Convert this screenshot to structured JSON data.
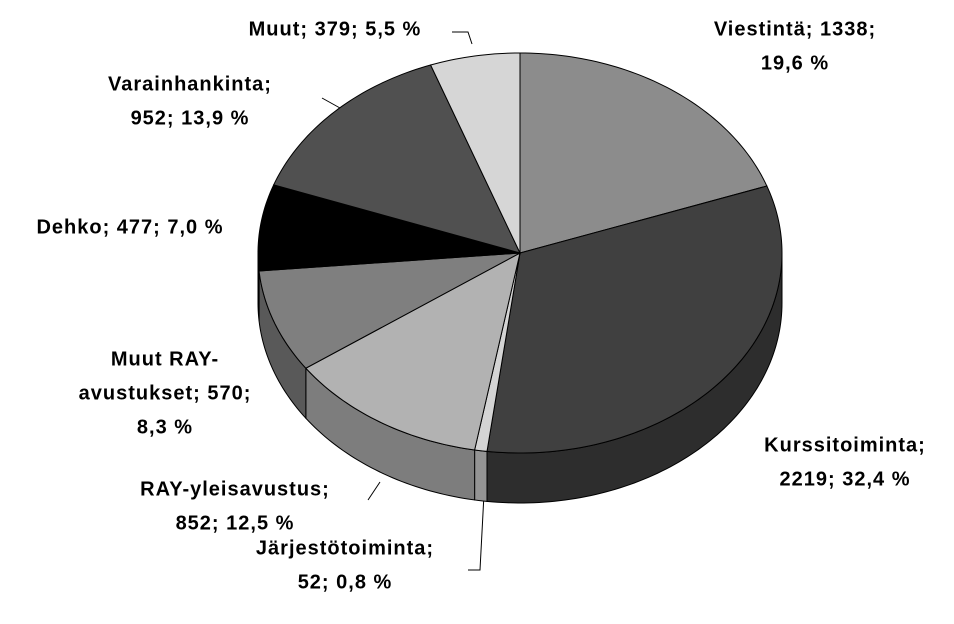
{
  "chart_data": {
    "type": "pie3d",
    "values": [
      1338,
      2219,
      52,
      852,
      570,
      477,
      952,
      379
    ],
    "percentages": [
      19.6,
      32.4,
      0.8,
      12.5,
      8.3,
      7.0,
      13.9,
      5.5
    ],
    "value_labels": [
      [
        "Viestintä; 1338;",
        "19,6 %"
      ],
      [
        "Kurssitoiminta;",
        "2219; 32,4 %"
      ],
      [
        "Järjestötoiminta;",
        "52; 0,8 %"
      ],
      [
        "RAY-yleisavustus;",
        "852; 12,5 %"
      ],
      [
        "Muut RAY-",
        "avustukset; 570;",
        "8,3 %"
      ],
      [
        "Dehko; 477; 7,0 %"
      ],
      [
        "Varainhankinta;",
        "952; 13,9 %"
      ],
      [
        "Muut; 379; 5,5 %"
      ]
    ],
    "colors": [
      "#8c8c8c",
      "#404040",
      "#d4d4d4",
      "#b2b2b2",
      "#7f7f7f",
      "#000000",
      "#505050",
      "#d6d6d6"
    ]
  }
}
